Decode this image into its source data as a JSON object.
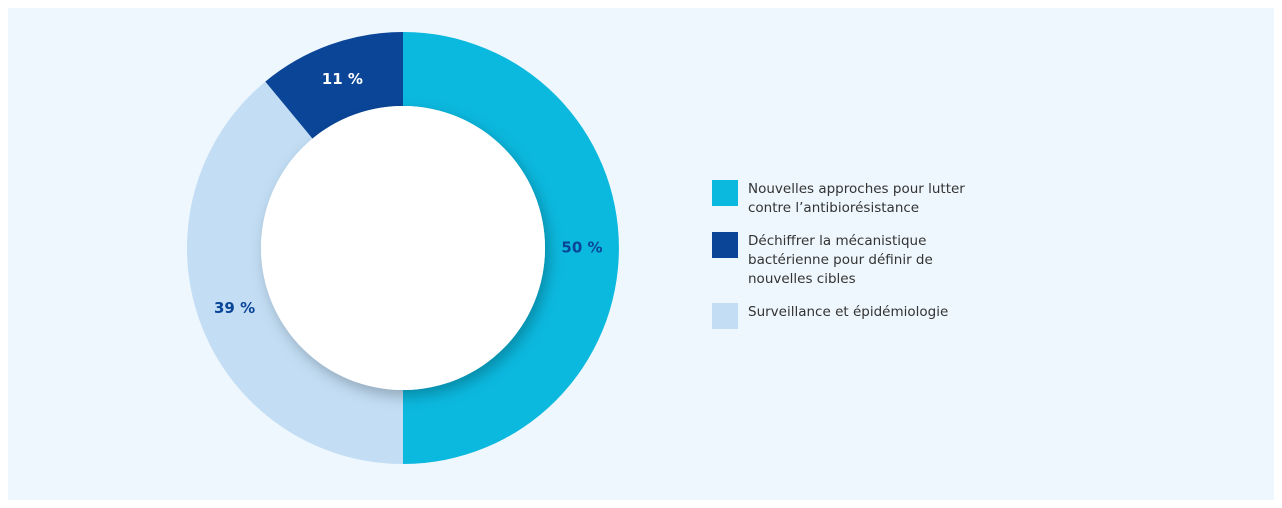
{
  "chart_data": {
    "type": "donut",
    "categories": [
      "Nouvelles approches pour lutter contre l’antibiorésistance",
      "Déchiffrer la mécanistique bactérienne pour définir de nouvelles cibles",
      "Surveillance et épidémiologie"
    ],
    "values": [
      50,
      11,
      39
    ],
    "value_labels": [
      "50 %",
      "11 %",
      "39 %"
    ],
    "colors": [
      "#0bb8de",
      "#0a4597",
      "#c2ddf4"
    ],
    "order": [
      0,
      2,
      1
    ],
    "legend": "right"
  }
}
